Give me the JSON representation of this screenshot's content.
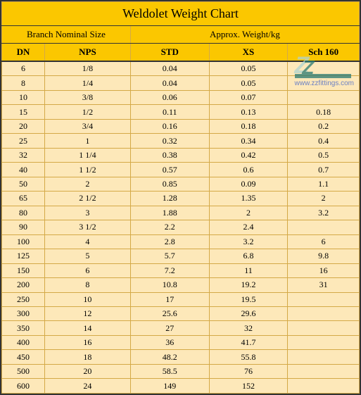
{
  "title": "Weldolet Weight Chart",
  "group_headers": [
    "Branch Nominal Size",
    "Approx. Weight/kg"
  ],
  "columns": [
    "DN",
    "NPS",
    "STD",
    "XS",
    "Sch 160"
  ],
  "rows": [
    [
      "6",
      "1/8",
      "0.04",
      "0.05",
      ""
    ],
    [
      "8",
      "1/4",
      "0.04",
      "0.05",
      ""
    ],
    [
      "10",
      "3/8",
      "0.06",
      "0.07",
      ""
    ],
    [
      "15",
      "1/2",
      "0.11",
      "0.13",
      "0.18"
    ],
    [
      "20",
      "3/4",
      "0.16",
      "0.18",
      "0.2"
    ],
    [
      "25",
      "1",
      "0.32",
      "0.34",
      "0.4"
    ],
    [
      "32",
      "1 1/4",
      "0.38",
      "0.42",
      "0.5"
    ],
    [
      "40",
      "1 1/2",
      "0.57",
      "0.6",
      "0.7"
    ],
    [
      "50",
      "2",
      "0.85",
      "0.09",
      "1.1"
    ],
    [
      "65",
      "2 1/2",
      "1.28",
      "1.35",
      "2"
    ],
    [
      "80",
      "3",
      "1.88",
      "2",
      "3.2"
    ],
    [
      "90",
      "3 1/2",
      "2.2",
      "2.4",
      ""
    ],
    [
      "100",
      "4",
      "2.8",
      "3.2",
      "6"
    ],
    [
      "125",
      "5",
      "5.7",
      "6.8",
      "9.8"
    ],
    [
      "150",
      "6",
      "7.2",
      "11",
      "16"
    ],
    [
      "200",
      "8",
      "10.8",
      "19.2",
      "31"
    ],
    [
      "250",
      "10",
      "17",
      "19.5",
      ""
    ],
    [
      "300",
      "12",
      "25.6",
      "29.6",
      ""
    ],
    [
      "350",
      "14",
      "27",
      "32",
      ""
    ],
    [
      "400",
      "16",
      "36",
      "41.7",
      ""
    ],
    [
      "450",
      "18",
      "48.2",
      "55.8",
      ""
    ],
    [
      "500",
      "20",
      "58.5",
      "76",
      ""
    ],
    [
      "600",
      "24",
      "149",
      "152",
      ""
    ]
  ],
  "watermark_url": "www.zzfittings.com",
  "styling": {
    "header_bg": "#fbc700",
    "row_bg": "#fde8b9",
    "border_color": "#d4a947",
    "outer_border": "#333333",
    "title_fontsize": 18,
    "header_fontsize": 13,
    "cell_fontsize": 12,
    "font_family": "Times New Roman",
    "column_widths": [
      "12%",
      "24%",
      "22%",
      "22%",
      "20%"
    ]
  }
}
